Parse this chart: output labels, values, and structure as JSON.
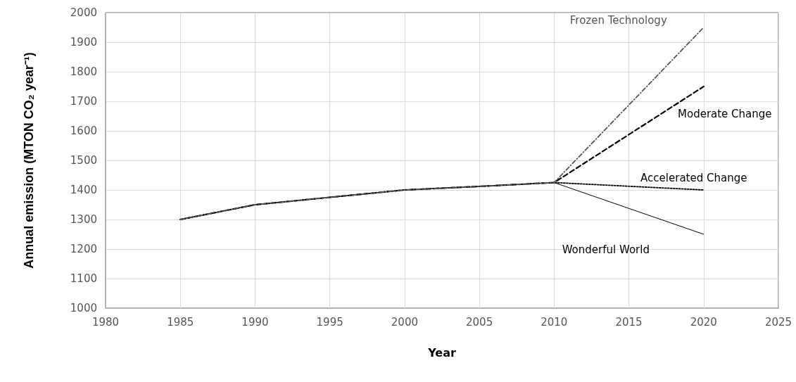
{
  "chart_data": {
    "type": "line",
    "xlabel": "Year",
    "ylabel": "Annual emission (MTON CO₂ year⁻¹)",
    "xlim": [
      1980,
      2025
    ],
    "xticks": [
      1980,
      1985,
      1990,
      1995,
      2000,
      2005,
      2010,
      2015,
      2020,
      2025
    ],
    "ylim": [
      1000,
      2000
    ],
    "yticks": [
      1000,
      1100,
      1200,
      1300,
      1400,
      1500,
      1600,
      1700,
      1800,
      1900,
      2000
    ],
    "grid": true,
    "legend": false,
    "marker": "none",
    "series": [
      {
        "name": "Frozen Technology",
        "color": "#555555",
        "line_style": "dotted",
        "x": [
          1985,
          1990,
          1995,
          2000,
          2005,
          2010,
          2020
        ],
        "values": [
          1300,
          1350,
          1375,
          1400,
          1412,
          1425,
          1950
        ]
      },
      {
        "name": "Moderate Change",
        "color": "#000000",
        "line_style": "dashed",
        "x": [
          1985,
          1990,
          1995,
          2000,
          2005,
          2010,
          2020
        ],
        "values": [
          1300,
          1350,
          1375,
          1400,
          1412,
          1425,
          1750
        ]
      },
      {
        "name": "Accelerated Change",
        "color": "#000000",
        "line_style": "dotted",
        "x": [
          1985,
          1990,
          1995,
          2000,
          2005,
          2010,
          2020
        ],
        "values": [
          1300,
          1350,
          1375,
          1400,
          1412,
          1425,
          1400
        ]
      },
      {
        "name": "Wonderful World",
        "color": "#000000",
        "line_style": "solid",
        "x": [
          1985,
          1990,
          1995,
          2000,
          2005,
          2010,
          2020
        ],
        "values": [
          1300,
          1350,
          1375,
          1400,
          1412,
          1425,
          1250
        ]
      }
    ]
  }
}
